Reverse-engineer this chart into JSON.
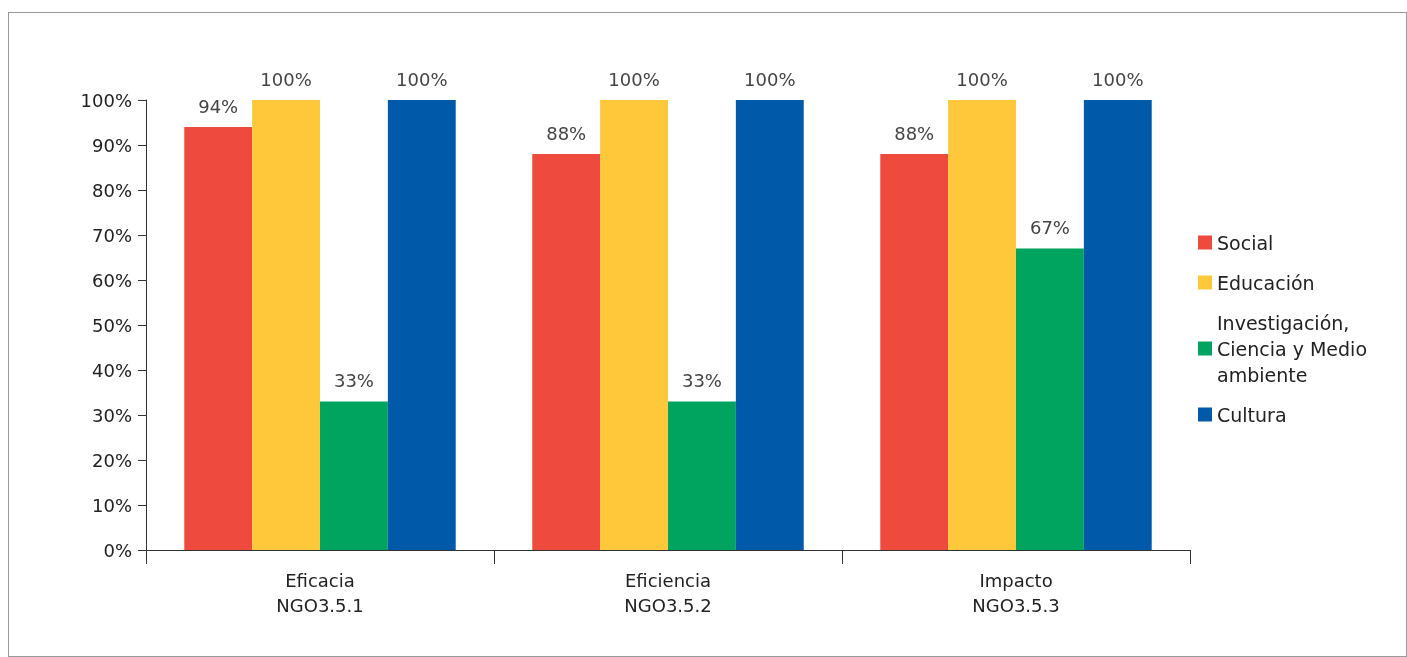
{
  "chart_data": {
    "type": "bar",
    "categories": [
      "Eficacia\nNGO3.5.1",
      "Eficiencia\nNGO3.5.2",
      "Impacto\nNGO3.5.3"
    ],
    "series": [
      {
        "name": "Social",
        "color": "#ee4b3e",
        "values": [
          94,
          88,
          88
        ],
        "value_labels": [
          "94%",
          "88%",
          "88%"
        ]
      },
      {
        "name": "Educación",
        "color": "#ffc83a",
        "values": [
          100,
          100,
          100
        ],
        "value_labels": [
          "100%",
          "100%",
          "100%"
        ]
      },
      {
        "name": "Investigación, Ciencia y Medio ambiente",
        "color": "#00a45f",
        "values": [
          33,
          33,
          67
        ],
        "value_labels": [
          "33%",
          "33%",
          "67%"
        ]
      },
      {
        "name": "Cultura",
        "color": "#005aa9",
        "values": [
          100,
          100,
          100
        ],
        "value_labels": [
          "100%",
          "100%",
          "100%"
        ]
      }
    ],
    "ylim": [
      0,
      100
    ],
    "yticks": [
      {
        "value": 0,
        "label": "0%"
      },
      {
        "value": 10,
        "label": "10%"
      },
      {
        "value": 20,
        "label": "20%"
      },
      {
        "value": 30,
        "label": "30%"
      },
      {
        "value": 40,
        "label": "40%"
      },
      {
        "value": 50,
        "label": "50%"
      },
      {
        "value": 60,
        "label": "60%"
      },
      {
        "value": 70,
        "label": "70%"
      },
      {
        "value": 80,
        "label": "80%"
      },
      {
        "value": 90,
        "label": "90%"
      },
      {
        "value": 100,
        "label": "100%"
      }
    ],
    "grid": false,
    "legend": "right"
  }
}
